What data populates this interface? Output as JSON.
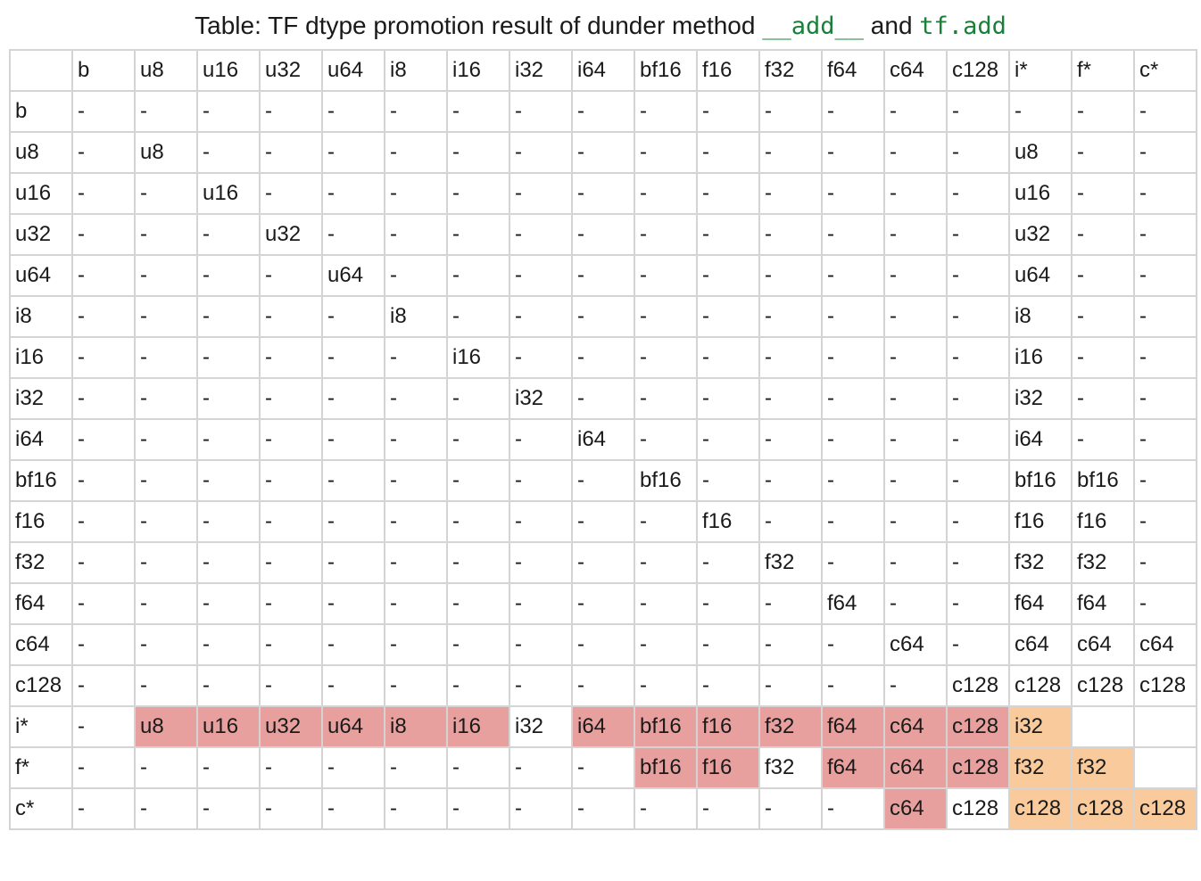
{
  "title": {
    "prefix": "Table: TF dtype promotion result of dunder method ",
    "code1": "__add__",
    "middle": " and ",
    "code2": "tf.add",
    "code_color": "#188038"
  },
  "colors": {
    "red": "#e8a09e",
    "orange": "#f9cb9c",
    "border": "#d4d4d4"
  },
  "columns": [
    "",
    "b",
    "u8",
    "u16",
    "u32",
    "u64",
    "i8",
    "i16",
    "i32",
    "i64",
    "bf16",
    "f16",
    "f32",
    "f64",
    "c64",
    "c128",
    "i*",
    "f*",
    "c*"
  ],
  "rows": [
    {
      "label": "b",
      "cells": [
        "-",
        "-",
        "-",
        "-",
        "-",
        "-",
        "-",
        "-",
        "-",
        "-",
        "-",
        "-",
        "-",
        "-",
        "-",
        "-",
        "-",
        "-"
      ]
    },
    {
      "label": "u8",
      "cells": [
        "-",
        "u8",
        "-",
        "-",
        "-",
        "-",
        "-",
        "-",
        "-",
        "-",
        "-",
        "-",
        "-",
        "-",
        "-",
        "u8",
        "-",
        "-"
      ]
    },
    {
      "label": "u16",
      "cells": [
        "-",
        "-",
        "u16",
        "-",
        "-",
        "-",
        "-",
        "-",
        "-",
        "-",
        "-",
        "-",
        "-",
        "-",
        "-",
        "u16",
        "-",
        "-"
      ]
    },
    {
      "label": "u32",
      "cells": [
        "-",
        "-",
        "-",
        "u32",
        "-",
        "-",
        "-",
        "-",
        "-",
        "-",
        "-",
        "-",
        "-",
        "-",
        "-",
        "u32",
        "-",
        "-"
      ]
    },
    {
      "label": "u64",
      "cells": [
        "-",
        "-",
        "-",
        "-",
        "u64",
        "-",
        "-",
        "-",
        "-",
        "-",
        "-",
        "-",
        "-",
        "-",
        "-",
        "u64",
        "-",
        "-"
      ]
    },
    {
      "label": "i8",
      "cells": [
        "-",
        "-",
        "-",
        "-",
        "-",
        "i8",
        "-",
        "-",
        "-",
        "-",
        "-",
        "-",
        "-",
        "-",
        "-",
        "i8",
        "-",
        "-"
      ]
    },
    {
      "label": "i16",
      "cells": [
        "-",
        "-",
        "-",
        "-",
        "-",
        "-",
        "i16",
        "-",
        "-",
        "-",
        "-",
        "-",
        "-",
        "-",
        "-",
        "i16",
        "-",
        "-"
      ]
    },
    {
      "label": "i32",
      "cells": [
        "-",
        "-",
        "-",
        "-",
        "-",
        "-",
        "-",
        "i32",
        "-",
        "-",
        "-",
        "-",
        "-",
        "-",
        "-",
        "i32",
        "-",
        "-"
      ]
    },
    {
      "label": "i64",
      "cells": [
        "-",
        "-",
        "-",
        "-",
        "-",
        "-",
        "-",
        "-",
        "i64",
        "-",
        "-",
        "-",
        "-",
        "-",
        "-",
        "i64",
        "-",
        "-"
      ]
    },
    {
      "label": "bf16",
      "cells": [
        "-",
        "-",
        "-",
        "-",
        "-",
        "-",
        "-",
        "-",
        "-",
        "bf16",
        "-",
        "-",
        "-",
        "-",
        "-",
        "bf16",
        "bf16",
        "-"
      ]
    },
    {
      "label": "f16",
      "cells": [
        "-",
        "-",
        "-",
        "-",
        "-",
        "-",
        "-",
        "-",
        "-",
        "-",
        "f16",
        "-",
        "-",
        "-",
        "-",
        "f16",
        "f16",
        "-"
      ]
    },
    {
      "label": "f32",
      "cells": [
        "-",
        "-",
        "-",
        "-",
        "-",
        "-",
        "-",
        "-",
        "-",
        "-",
        "-",
        "f32",
        "-",
        "-",
        "-",
        "f32",
        "f32",
        "-"
      ]
    },
    {
      "label": "f64",
      "cells": [
        "-",
        "-",
        "-",
        "-",
        "-",
        "-",
        "-",
        "-",
        "-",
        "-",
        "-",
        "-",
        "f64",
        "-",
        "-",
        "f64",
        "f64",
        "-"
      ]
    },
    {
      "label": "c64",
      "cells": [
        "-",
        "-",
        "-",
        "-",
        "-",
        "-",
        "-",
        "-",
        "-",
        "-",
        "-",
        "-",
        "-",
        "c64",
        "-",
        "c64",
        "c64",
        "c64"
      ]
    },
    {
      "label": "c128",
      "cells": [
        "-",
        "-",
        "-",
        "-",
        "-",
        "-",
        "-",
        "-",
        "-",
        "-",
        "-",
        "-",
        "-",
        "-",
        "c128",
        "c128",
        "c128",
        "c128"
      ]
    },
    {
      "label": "i*",
      "cells": [
        "-",
        "u8",
        "u16",
        "u32",
        "u64",
        "i8",
        "i16",
        "i32",
        "i64",
        "bf16",
        "f16",
        "f32",
        "f64",
        "c64",
        "c128",
        "i32",
        "",
        ""
      ],
      "highlight": [
        "",
        "red",
        "red",
        "red",
        "red",
        "red",
        "red",
        "",
        "red",
        "red",
        "red",
        "red",
        "red",
        "red",
        "red",
        "orange",
        "",
        ""
      ]
    },
    {
      "label": "f*",
      "cells": [
        "-",
        "-",
        "-",
        "-",
        "-",
        "-",
        "-",
        "-",
        "-",
        "bf16",
        "f16",
        "f32",
        "f64",
        "c64",
        "c128",
        "f32",
        "f32",
        ""
      ],
      "highlight": [
        "",
        "",
        "",
        "",
        "",
        "",
        "",
        "",
        "",
        "red",
        "red",
        "",
        "red",
        "red",
        "red",
        "orange",
        "orange",
        ""
      ]
    },
    {
      "label": "c*",
      "cells": [
        "-",
        "-",
        "-",
        "-",
        "-",
        "-",
        "-",
        "-",
        "-",
        "-",
        "-",
        "-",
        "-",
        "c64",
        "c128",
        "c128",
        "c128",
        "c128"
      ],
      "highlight": [
        "",
        "",
        "",
        "",
        "",
        "",
        "",
        "",
        "",
        "",
        "",
        "",
        "",
        "red",
        "",
        "orange",
        "orange",
        "orange"
      ]
    }
  ]
}
